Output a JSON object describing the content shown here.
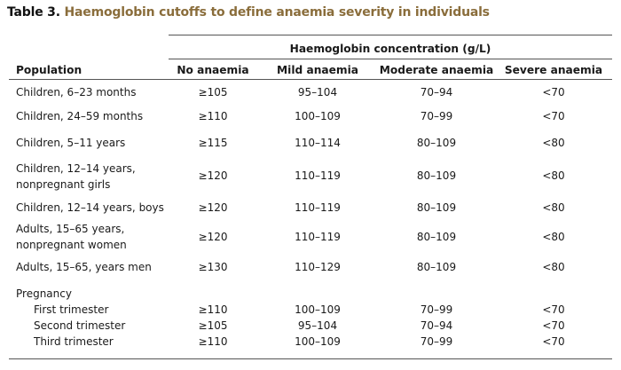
{
  "title": {
    "label": "Table 3.",
    "text": "Haemoglobin cutoffs to define anaemia severity in individuals"
  },
  "header": {
    "group": "Haemoglobin concentration (g/L)",
    "population": "Population",
    "columns": [
      "No anaemia",
      "Mild anaemia",
      "Moderate anaemia",
      "Severe anaemia"
    ]
  },
  "rows": [
    {
      "population": [
        "Children, 6–23 months"
      ],
      "values": [
        "≥105",
        "95–104",
        "70–94",
        "<70"
      ]
    },
    {
      "population": [
        "Children, 24–59 months"
      ],
      "values": [
        "≥110",
        "100–109",
        "70–99",
        "<70"
      ]
    },
    {
      "population": [
        "Children, 5–11 years"
      ],
      "values": [
        "≥115",
        "110–114",
        "80–109",
        "<80"
      ]
    },
    {
      "population": [
        "Children, 12–14 years,",
        "nonpregnant girls"
      ],
      "values": [
        "≥120",
        "110–119",
        "80–109",
        "<80"
      ]
    },
    {
      "population": [
        "Children, 12–14 years, boys"
      ],
      "values": [
        "≥120",
        "110–119",
        "80–109",
        "<80"
      ]
    },
    {
      "population": [
        "Adults, 15–65 years,",
        "nonpregnant women"
      ],
      "values": [
        "≥120",
        "110–119",
        "80–109",
        "<80"
      ]
    },
    {
      "population": [
        "Adults, 15–65, years men"
      ],
      "values": [
        "≥130",
        "110–129",
        "80–109",
        "<80"
      ]
    }
  ],
  "pregnancy": {
    "label": "Pregnancy",
    "rows": [
      {
        "population": "First trimester",
        "values": [
          "≥110",
          "100–109",
          "70–99",
          "<70"
        ]
      },
      {
        "population": "Second trimester",
        "values": [
          "≥105",
          "95–104",
          "70–94",
          "<70"
        ]
      },
      {
        "population": "Third trimester",
        "values": [
          "≥110",
          "100–109",
          "70–99",
          "<70"
        ]
      }
    ]
  }
}
